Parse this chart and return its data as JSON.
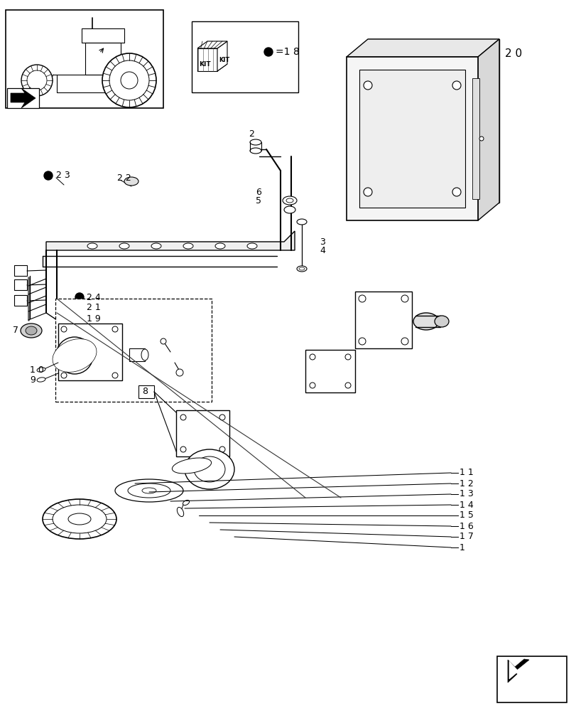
{
  "bg_color": "#ffffff",
  "lc": "#000000",
  "labels": {
    "part_20": "2 0",
    "part_23": "2 3",
    "part_22": "2 2",
    "part_2": "2",
    "part_6": "6",
    "part_5": "5",
    "part_3": "3",
    "part_4": "4",
    "part_24": "2 4",
    "part_21": "2 1",
    "part_19": "1 9",
    "part_7": "7",
    "part_8": "8",
    "part_10": "1 0",
    "part_9": "9",
    "part_11": "1 1",
    "part_12": "1 2",
    "part_13": "1 3",
    "part_14": "1 4",
    "part_15": "1 5",
    "part_16": "1 6",
    "part_17": "1 7",
    "part_1": "1"
  },
  "kit_eq": "=1 8"
}
